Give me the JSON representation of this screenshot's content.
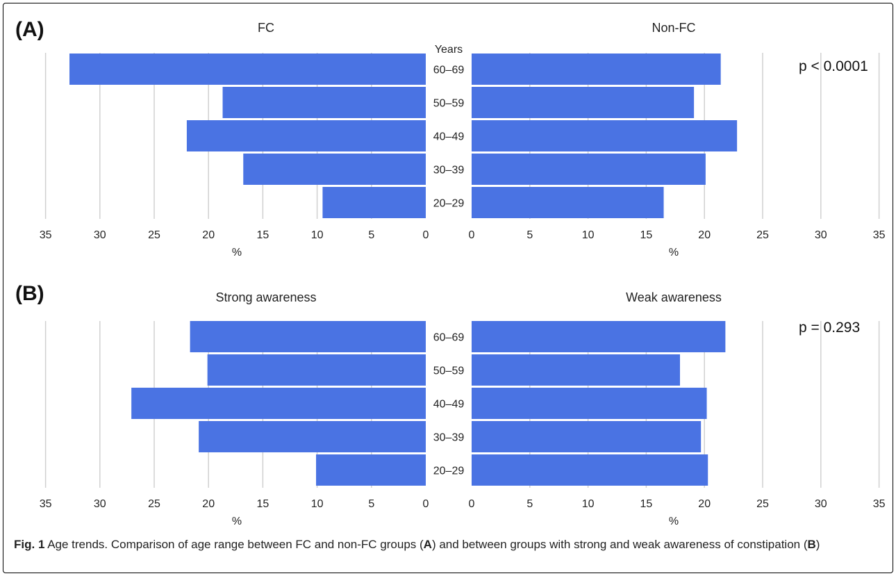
{
  "chart_data": [
    {
      "type": "bar",
      "panel_label": "(A)",
      "left_title": "FC",
      "right_title": "Non-FC",
      "center_header": "Years",
      "categories": [
        "60–69",
        "50–59",
        "40–49",
        "30–39",
        "20–29"
      ],
      "series": [
        {
          "name": "FC",
          "side": "left",
          "values": [
            32.8,
            18.7,
            22.0,
            16.8,
            9.5
          ]
        },
        {
          "name": "Non-FC",
          "side": "right",
          "values": [
            21.4,
            19.1,
            22.8,
            20.1,
            16.5
          ]
        }
      ],
      "xlim": [
        0,
        35
      ],
      "xticks": [
        "0",
        "5",
        "10",
        "15",
        "20",
        "25",
        "30",
        "35"
      ],
      "xlabel_left": "%",
      "xlabel_right": "%",
      "annotation": "p < 0.0001",
      "grid": true,
      "color": "#4a73e3"
    },
    {
      "type": "bar",
      "panel_label": "(B)",
      "left_title": "Strong awareness",
      "right_title": "Weak awareness",
      "center_header": "",
      "categories": [
        "60–69",
        "50–59",
        "40–49",
        "30–39",
        "20–29"
      ],
      "series": [
        {
          "name": "Strong awareness",
          "side": "left",
          "values": [
            21.7,
            20.1,
            27.1,
            20.9,
            10.1
          ]
        },
        {
          "name": "Weak awareness",
          "side": "right",
          "values": [
            21.8,
            17.9,
            20.2,
            19.7,
            20.3
          ]
        }
      ],
      "xlim": [
        0,
        35
      ],
      "xticks": [
        "0",
        "5",
        "10",
        "15",
        "20",
        "25",
        "30",
        "35"
      ],
      "xlabel_left": "%",
      "xlabel_right": "%",
      "annotation": "p = 0.293",
      "grid": true,
      "color": "#4a73e3"
    }
  ],
  "caption": {
    "fig_label": "Fig. 1",
    "text_1": " Age trends. Comparison of age range between FC and non-FC groups (",
    "ref_a": "A",
    "text_2": ") and between groups with strong and weak awareness of constipation (",
    "ref_b": "B",
    "text_3": ")"
  }
}
